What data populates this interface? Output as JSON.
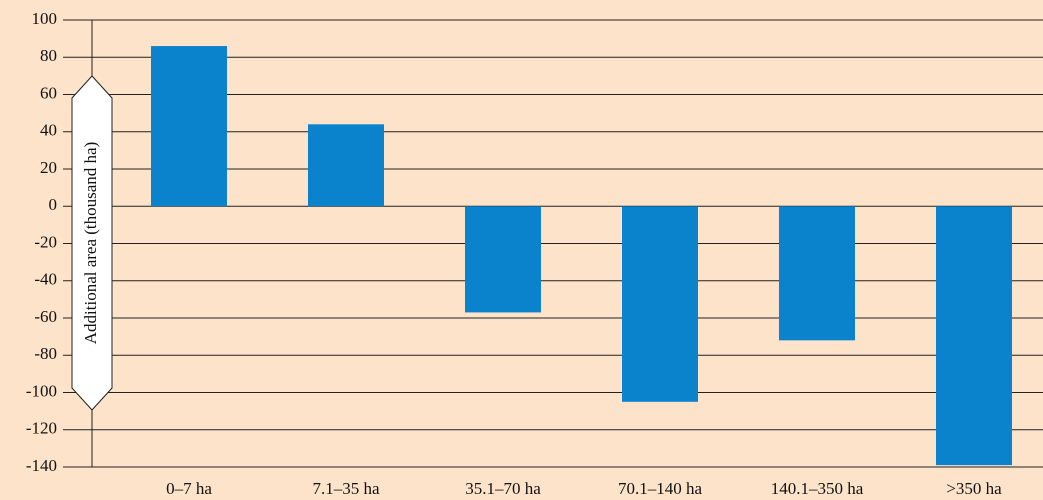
{
  "chart_data": {
    "type": "bar",
    "y_label": "Additional area (thousand ha)",
    "categories": [
      "0–7 ha",
      "7.1–35 ha",
      "35.1–70 ha",
      "70.1–140 ha",
      "140.1–350 ha",
      ">350 ha"
    ],
    "values": [
      86,
      44,
      -57,
      -105,
      -72,
      -139
    ],
    "color": "#0a82cc",
    "ylim": [
      -140,
      100
    ],
    "yticks": [
      -140,
      -120,
      -100,
      -80,
      -60,
      -40,
      -20,
      0,
      20,
      40,
      60,
      80,
      100
    ],
    "grid": true
  }
}
